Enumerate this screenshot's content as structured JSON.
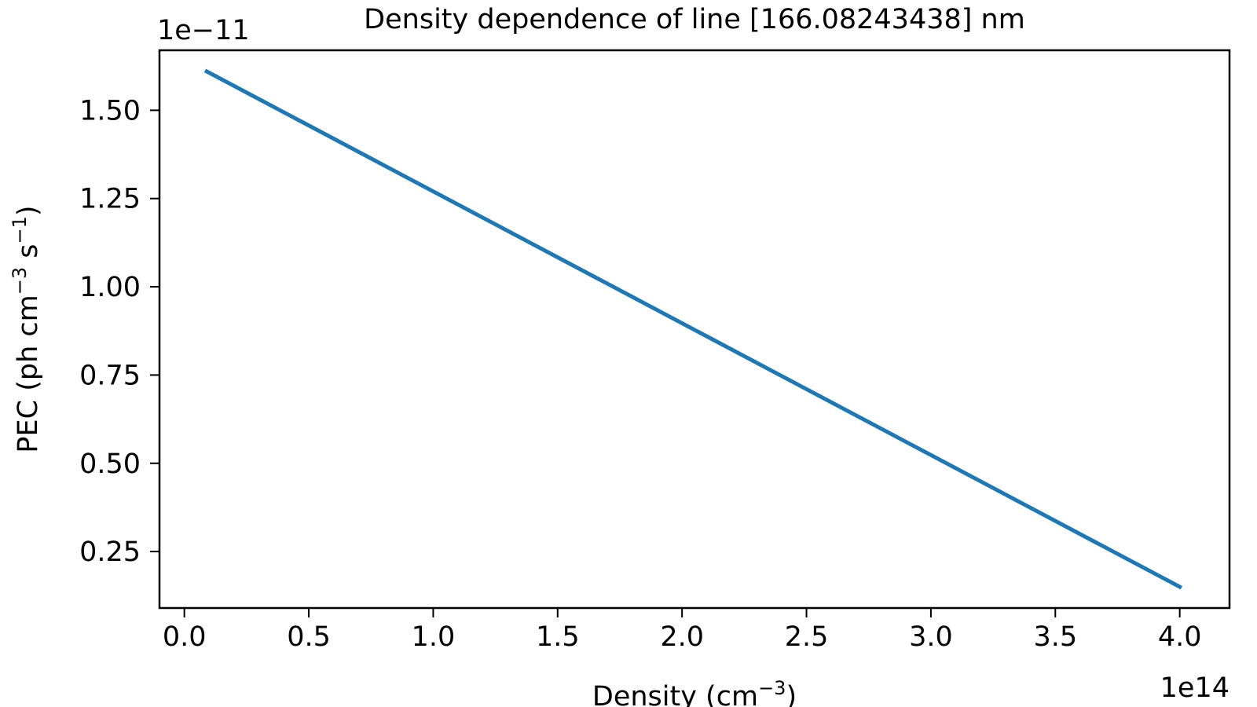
{
  "chart_data": {
    "type": "line",
    "title": "Density dependence of line [166.08243438] nm",
    "xlabel": {
      "text": "Density (cm",
      "sup": "−3",
      "suffix": ")"
    },
    "ylabel": {
      "prefix": "PEC (ph cm",
      "sup1": "−3",
      "mid": " s",
      "sup2": "−1",
      "suffix": ")"
    },
    "x_offset_text": "1e14",
    "y_offset_text": "1e−11",
    "xlim": [
      -0.1,
      4.2
    ],
    "ylim": [
      0.09,
      1.67
    ],
    "x_ticks": [
      0.0,
      0.5,
      1.0,
      1.5,
      2.0,
      2.5,
      3.0,
      3.5,
      4.0
    ],
    "x_tick_labels": [
      "0.0",
      "0.5",
      "1.0",
      "1.5",
      "2.0",
      "2.5",
      "3.0",
      "3.5",
      "4.0"
    ],
    "y_ticks": [
      0.25,
      0.5,
      0.75,
      1.0,
      1.25,
      1.5
    ],
    "y_tick_labels": [
      "0.25",
      "0.50",
      "0.75",
      "1.00",
      "1.25",
      "1.50"
    ],
    "series": [
      {
        "x": [
          0.09,
          4.0
        ],
        "y": [
          1.61,
          0.15
        ],
        "color": "#1f77b4"
      }
    ],
    "grid": false,
    "legend": "none"
  }
}
